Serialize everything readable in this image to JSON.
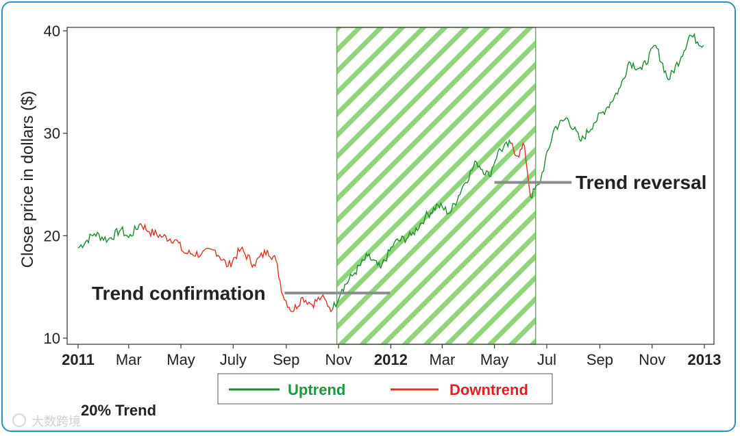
{
  "chart_data": {
    "type": "line",
    "title": "",
    "xlabel": "",
    "ylabel": "Close price in dollars ($)",
    "ylim": [
      10,
      40
    ],
    "yticks": [
      10,
      20,
      30,
      40
    ],
    "x_range": [
      "2011-01-01",
      "2013-01-01"
    ],
    "xticks": [
      {
        "label": "2011",
        "date": "2011-01-01",
        "bold": true
      },
      {
        "label": "Mar",
        "date": "2011-03-01",
        "bold": false
      },
      {
        "label": "May",
        "date": "2011-05-01",
        "bold": false
      },
      {
        "label": "July",
        "date": "2011-07-01",
        "bold": false
      },
      {
        "label": "Sep",
        "date": "2011-09-01",
        "bold": false
      },
      {
        "label": "Nov",
        "date": "2011-11-01",
        "bold": false
      },
      {
        "label": "2012",
        "date": "2012-01-01",
        "bold": true
      },
      {
        "label": "Mar",
        "date": "2012-03-01",
        "bold": false
      },
      {
        "label": "May",
        "date": "2012-05-01",
        "bold": false
      },
      {
        "label": "Jul",
        "date": "2012-07-01",
        "bold": false
      },
      {
        "label": "Sep",
        "date": "2012-09-01",
        "bold": false
      },
      {
        "label": "Nov",
        "date": "2012-11-01",
        "bold": false
      },
      {
        "label": "2013",
        "date": "2013-01-01",
        "bold": true
      }
    ],
    "series": [
      {
        "name": "Uptrend",
        "color": "#1a8a2e"
      },
      {
        "name": "Downtrend",
        "color": "#e03020"
      }
    ],
    "points": [
      {
        "date": "2011-01-01",
        "value": 18.8,
        "trend": "up"
      },
      {
        "date": "2011-01-20",
        "value": 20.2,
        "trend": "up"
      },
      {
        "date": "2011-02-05",
        "value": 19.6,
        "trend": "up"
      },
      {
        "date": "2011-02-20",
        "value": 20.6,
        "trend": "up"
      },
      {
        "date": "2011-03-01",
        "value": 19.8,
        "trend": "up"
      },
      {
        "date": "2011-03-15",
        "value": 21.2,
        "trend": "up"
      },
      {
        "date": "2011-03-25",
        "value": 20.4,
        "trend": "down"
      },
      {
        "date": "2011-04-10",
        "value": 19.9,
        "trend": "down"
      },
      {
        "date": "2011-04-25",
        "value": 19.6,
        "trend": "down"
      },
      {
        "date": "2011-05-05",
        "value": 18.3,
        "trend": "down"
      },
      {
        "date": "2011-05-25",
        "value": 18.2,
        "trend": "down"
      },
      {
        "date": "2011-06-10",
        "value": 18.6,
        "trend": "down"
      },
      {
        "date": "2011-06-25",
        "value": 17.0,
        "trend": "down"
      },
      {
        "date": "2011-07-10",
        "value": 18.7,
        "trend": "down"
      },
      {
        "date": "2011-07-25",
        "value": 17.2,
        "trend": "down"
      },
      {
        "date": "2011-08-10",
        "value": 18.6,
        "trend": "down"
      },
      {
        "date": "2011-08-20",
        "value": 17.6,
        "trend": "down"
      },
      {
        "date": "2011-08-28",
        "value": 14.2,
        "trend": "down"
      },
      {
        "date": "2011-09-08",
        "value": 12.6,
        "trend": "down"
      },
      {
        "date": "2011-09-20",
        "value": 14.0,
        "trend": "down"
      },
      {
        "date": "2011-10-01",
        "value": 13.3,
        "trend": "down"
      },
      {
        "date": "2011-10-12",
        "value": 14.0,
        "trend": "down"
      },
      {
        "date": "2011-10-25",
        "value": 12.8,
        "trend": "down"
      },
      {
        "date": "2011-11-05",
        "value": 14.8,
        "trend": "up"
      },
      {
        "date": "2011-11-20",
        "value": 16.4,
        "trend": "up"
      },
      {
        "date": "2011-12-05",
        "value": 18.0,
        "trend": "up"
      },
      {
        "date": "2011-12-20",
        "value": 16.8,
        "trend": "up"
      },
      {
        "date": "2012-01-05",
        "value": 19.3,
        "trend": "up"
      },
      {
        "date": "2012-01-25",
        "value": 20.0,
        "trend": "up"
      },
      {
        "date": "2012-02-10",
        "value": 21.8,
        "trend": "up"
      },
      {
        "date": "2012-02-25",
        "value": 23.0,
        "trend": "up"
      },
      {
        "date": "2012-03-10",
        "value": 22.2,
        "trend": "up"
      },
      {
        "date": "2012-03-25",
        "value": 24.8,
        "trend": "up"
      },
      {
        "date": "2012-04-10",
        "value": 27.2,
        "trend": "up"
      },
      {
        "date": "2012-04-25",
        "value": 25.8,
        "trend": "up"
      },
      {
        "date": "2012-05-05",
        "value": 28.2,
        "trend": "up"
      },
      {
        "date": "2012-05-20",
        "value": 29.0,
        "trend": "up"
      },
      {
        "date": "2012-05-28",
        "value": 27.8,
        "trend": "down"
      },
      {
        "date": "2012-06-05",
        "value": 28.8,
        "trend": "down"
      },
      {
        "date": "2012-06-12",
        "value": 23.8,
        "trend": "down"
      },
      {
        "date": "2012-06-22",
        "value": 25.0,
        "trend": "up"
      },
      {
        "date": "2012-07-10",
        "value": 30.5,
        "trend": "up"
      },
      {
        "date": "2012-07-25",
        "value": 31.5,
        "trend": "up"
      },
      {
        "date": "2012-08-10",
        "value": 29.2,
        "trend": "up"
      },
      {
        "date": "2012-08-25",
        "value": 31.0,
        "trend": "up"
      },
      {
        "date": "2012-09-10",
        "value": 32.6,
        "trend": "up"
      },
      {
        "date": "2012-09-25",
        "value": 34.5,
        "trend": "up"
      },
      {
        "date": "2012-10-05",
        "value": 37.0,
        "trend": "up"
      },
      {
        "date": "2012-10-20",
        "value": 36.2,
        "trend": "up"
      },
      {
        "date": "2012-11-05",
        "value": 38.6,
        "trend": "up"
      },
      {
        "date": "2012-11-20",
        "value": 35.2,
        "trend": "up"
      },
      {
        "date": "2012-12-05",
        "value": 37.5,
        "trend": "up"
      },
      {
        "date": "2012-12-15",
        "value": 39.6,
        "trend": "up"
      },
      {
        "date": "2012-12-31",
        "value": 38.6,
        "trend": "up"
      }
    ],
    "uptrend_band": {
      "start": "2011-10-30",
      "end": "2012-06-18"
    },
    "annotations": [
      {
        "text": "Trend confirmation",
        "line_from": "2011-08-30",
        "line_to": "2011-12-31",
        "value": 14.4
      },
      {
        "text": "Trend reversal",
        "line_from": "2012-05-01",
        "line_to": "2012-07-30",
        "value": 25.2
      }
    ],
    "legend": {
      "position": "bottom-center",
      "items": [
        "Uptrend",
        "Downtrend"
      ]
    },
    "caption": "20% Trend",
    "grid": false
  },
  "watermark": "大数跨境"
}
